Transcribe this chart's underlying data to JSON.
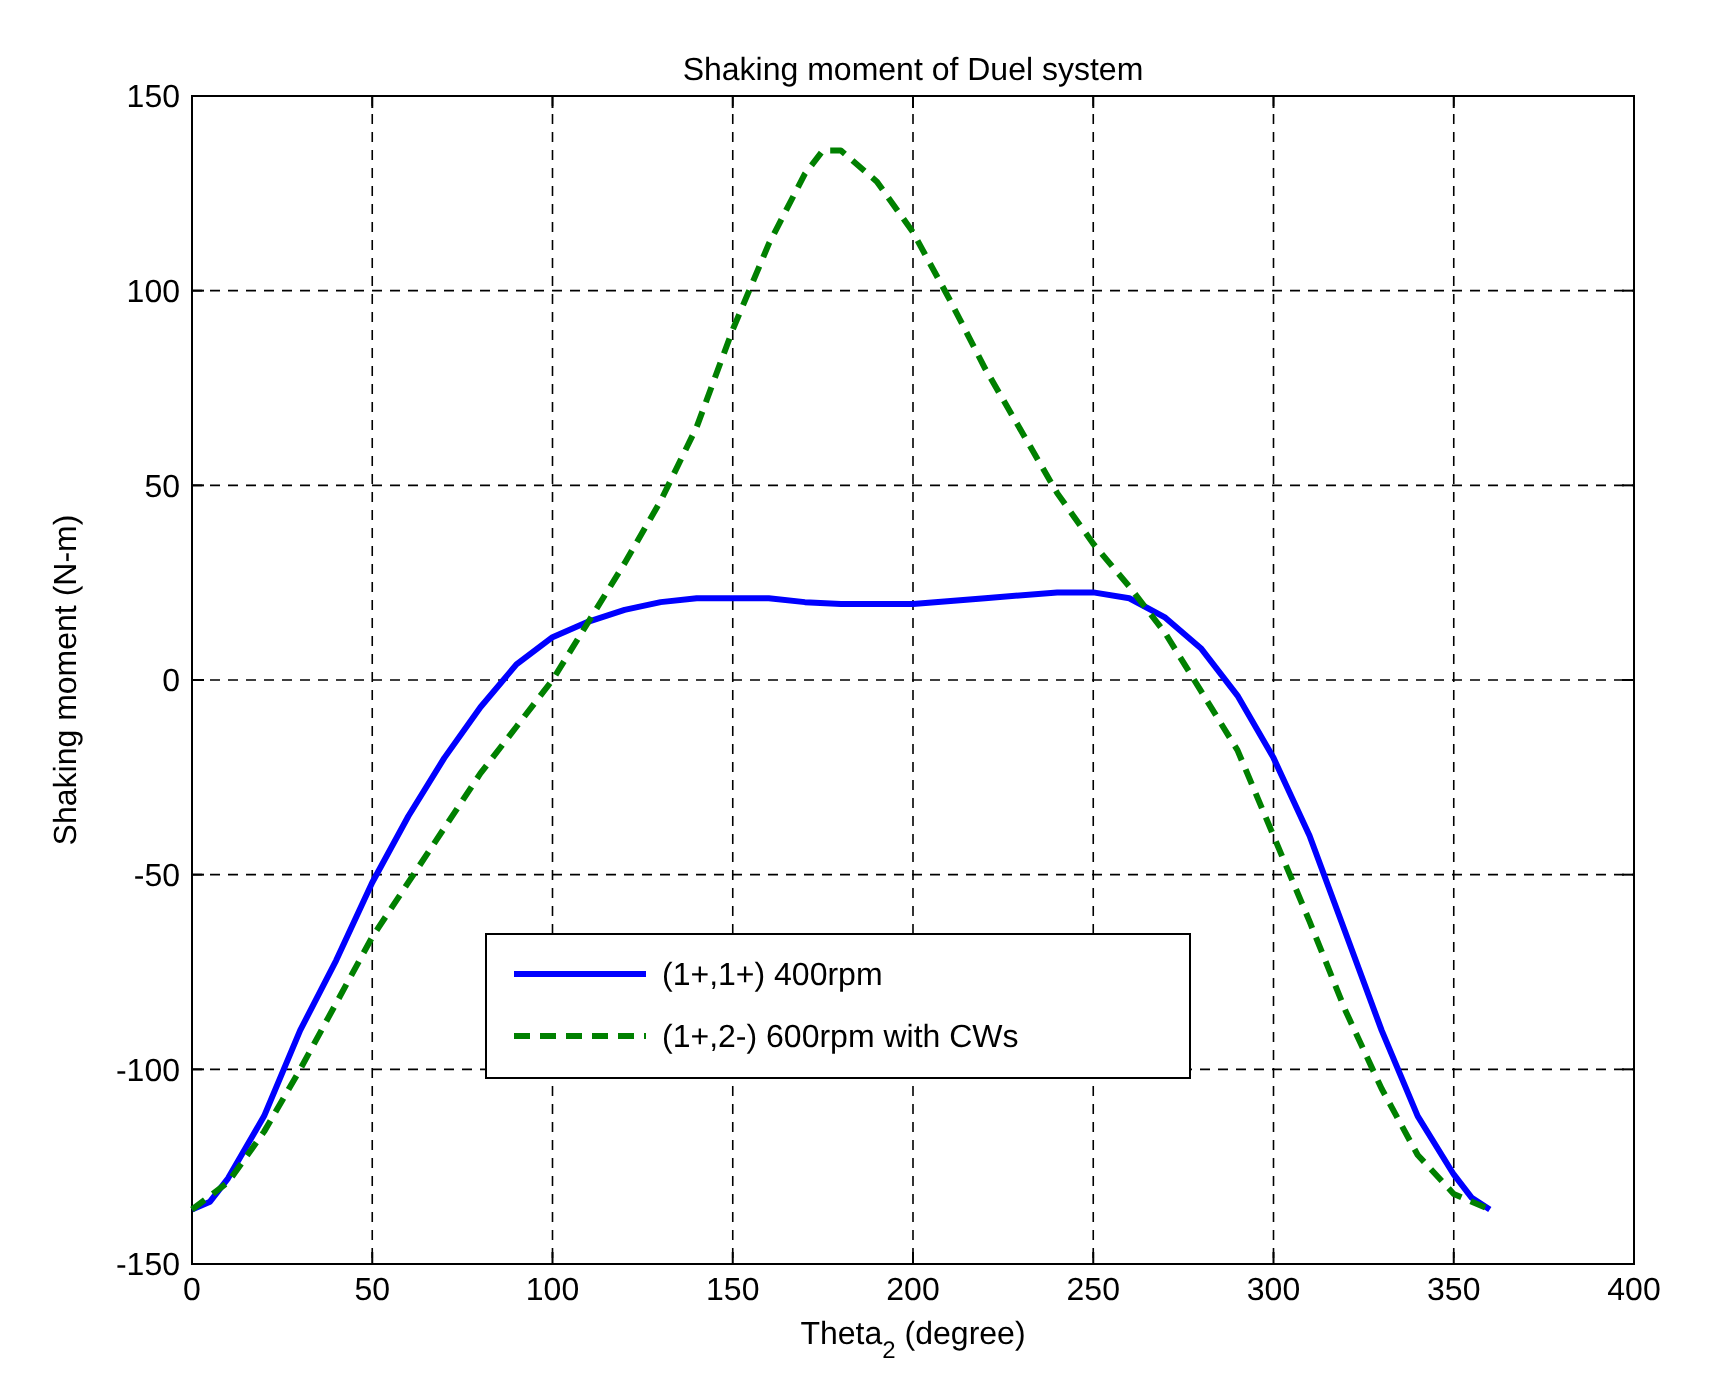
{
  "chart_data": {
    "type": "line",
    "title": "Shaking moment of Duel system",
    "xlabel": "Theta$_{2}$ (degree)",
    "ylabel": "Shaking moment (N-m)",
    "xlim": [
      0,
      400
    ],
    "xticks": [
      0,
      50,
      100,
      150,
      200,
      250,
      300,
      350,
      400
    ],
    "ylim": [
      -150,
      150
    ],
    "yticks": [
      -150,
      -100,
      -50,
      0,
      50,
      100,
      150
    ],
    "grid": true,
    "legend": "bottom",
    "series": [
      {
        "name": "(1+,1+) 400rpm",
        "color": "#0000ff",
        "line_style": "solid",
        "x": [
          0,
          5,
          10,
          20,
          30,
          40,
          50,
          60,
          70,
          80,
          90,
          100,
          110,
          120,
          130,
          140,
          160,
          170,
          180,
          200,
          220,
          240,
          250,
          260,
          270,
          280,
          290,
          300,
          310,
          320,
          330,
          340,
          350,
          355,
          360
        ],
        "values": [
          -136,
          -134,
          -128,
          -112,
          -90,
          -72,
          -52,
          -35,
          -20,
          -7,
          4,
          11,
          15,
          18,
          20,
          21,
          21,
          20,
          19.5,
          19.5,
          21,
          22.5,
          22.5,
          21,
          16,
          8,
          -4,
          -20,
          -40,
          -65,
          -90,
          -112,
          -127,
          -133,
          -136
        ]
      },
      {
        "name": "(1+,2-) 600rpm with CWs",
        "color": "#008000",
        "line_style": "dashed",
        "x": [
          0,
          10,
          20,
          30,
          40,
          50,
          60,
          70,
          80,
          90,
          100,
          110,
          120,
          130,
          140,
          150,
          160,
          170,
          175,
          180,
          190,
          200,
          210,
          220,
          230,
          240,
          250,
          260,
          270,
          280,
          290,
          300,
          310,
          320,
          330,
          340,
          350,
          360
        ],
        "values": [
          -136,
          -129,
          -116,
          -100,
          -83,
          -66,
          -52,
          -38,
          -24,
          -12,
          0,
          15,
          30,
          46,
          65,
          90,
          112,
          130,
          136,
          136,
          128,
          115,
          98,
          80,
          64,
          48,
          35,
          24,
          12,
          -3,
          -18,
          -40,
          -62,
          -85,
          -105,
          -122,
          -132,
          -136
        ]
      }
    ]
  }
}
